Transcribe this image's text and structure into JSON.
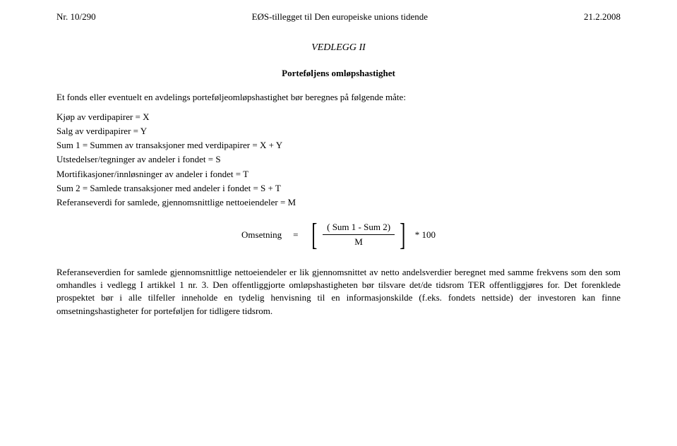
{
  "header": {
    "left": "Nr. 10/290",
    "center": "EØS-tillegget til Den europeiske unions tidende",
    "right": "21.2.2008"
  },
  "annex_title": "VEDLEGG II",
  "subtitle": "Porteføljens omløpshastighet",
  "intro": "Et fonds eller eventuelt en avdelings porteføljeomløpshastighet bør beregnes på følgende måte:",
  "defs": {
    "d1": "Kjøp av verdipapirer = X",
    "d2": "Salg av verdipapirer = Y",
    "d3": "Sum 1 = Summen av transaksjoner med verdipapirer = X + Y",
    "d4": "Utstedelser/tegninger av andeler i fondet = S",
    "d5": "Mortifikasjoner/innløsninger av andeler i fondet = T",
    "d6": "Sum 2 = Samlede transaksjoner med andeler i fondet = S + T",
    "d7": "Referanseverdi for samlede, gjennomsnittlige nettoeiendeler = M"
  },
  "formula": {
    "lhs": "Omsetning",
    "eq": "=",
    "num": "( Sum 1 -  Sum 2)",
    "den": "M",
    "tail": "* 100"
  },
  "paragraph": "Referanseverdien for samlede gjennomsnittlige nettoeiendeler er lik gjennomsnittet av netto andelsverdier beregnet med samme frekvens som den som omhandles i vedlegg I artikkel 1 nr. 3. Den offentliggjorte omløpshastigheten bør tilsvare det/de tidsrom TER offentliggjøres for. Det forenklede prospektet bør i alle tilfeller inneholde en tydelig henvisning til en informasjonskilde (f.eks. fondets nettside) der investoren kan finne omsetningshastigheter for porteføljen for tidligere tidsrom."
}
